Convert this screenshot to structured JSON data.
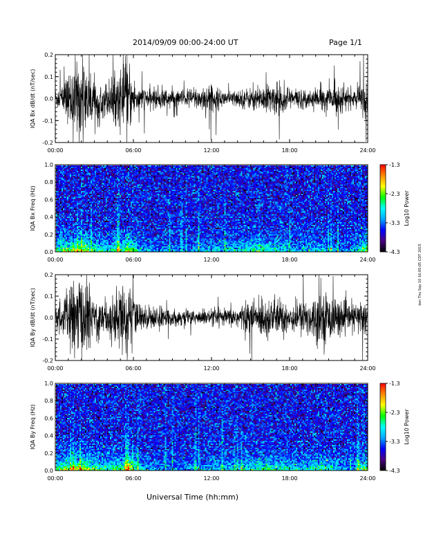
{
  "header": {
    "title": "2014/09/09   00:00-24:00 UT",
    "page": "Page 1/1"
  },
  "footer": {
    "xlabel": "Universal Time (hh:mm)"
  },
  "side_note": "ken Thu Sep 10 16:05:05 CDT 2015",
  "chart_data": [
    {
      "type": "line",
      "ylabel": "IQA Bx dB/dt (nT/sec)",
      "ylim": [
        -0.2,
        0.2
      ],
      "yticks": [
        -0.2,
        -0.1,
        0.0,
        0.1,
        0.2
      ],
      "ytick_labels": [
        "-0.2",
        "-0.1",
        "0.0",
        "0.1",
        "0.2"
      ],
      "xlim": [
        0,
        24
      ],
      "xtick_labels": [
        "00:00",
        "06:00",
        "12:00",
        "18:00",
        "24:00"
      ],
      "x": [
        0,
        0.5,
        1,
        1.5,
        2,
        2.5,
        3,
        3.5,
        4,
        4.5,
        5,
        5.5,
        6,
        6.5,
        7,
        7.5,
        8,
        8.5,
        9,
        9.5,
        10,
        10.5,
        11,
        11.5,
        12,
        12.5,
        13,
        13.5,
        14,
        14.5,
        15,
        15.5,
        16,
        16.5,
        17,
        17.5,
        18,
        18.5,
        19,
        19.5,
        20,
        20.5,
        21,
        21.5,
        22,
        22.5,
        23,
        23.5,
        24
      ],
      "amplitude": [
        0.05,
        0.07,
        0.12,
        0.19,
        0.2,
        0.16,
        0.1,
        0.08,
        0.09,
        0.12,
        0.14,
        0.2,
        0.1,
        0.06,
        0.05,
        0.05,
        0.06,
        0.05,
        0.05,
        0.04,
        0.05,
        0.05,
        0.06,
        0.07,
        0.07,
        0.05,
        0.04,
        0.04,
        0.04,
        0.05,
        0.05,
        0.06,
        0.07,
        0.07,
        0.08,
        0.07,
        0.06,
        0.05,
        0.05,
        0.04,
        0.05,
        0.05,
        0.06,
        0.08,
        0.06,
        0.05,
        0.04,
        0.08,
        0.1
      ],
      "color": "#000000"
    },
    {
      "type": "heatmap",
      "ylabel": "IQA Bx Freq (Hz)",
      "ylim": [
        0.0,
        1.0
      ],
      "yticks": [
        0.0,
        0.2,
        0.4,
        0.6,
        0.8,
        1.0
      ],
      "ytick_labels": [
        "0.0",
        "0.2",
        "0.4",
        "0.6",
        "0.8",
        "1.0"
      ],
      "xlim": [
        0,
        24
      ],
      "xtick_labels": [
        "00:00",
        "06:00",
        "12:00",
        "18:00",
        "24:00"
      ],
      "colorbar": {
        "label": "Log10 Power",
        "range": [
          -4.3,
          -1.3
        ],
        "tick_labels": [
          "-1.3",
          "-2.3",
          "-3.3",
          "-4.3"
        ],
        "colors": [
          "#000000",
          "#4b0082",
          "#0000ff",
          "#00aaff",
          "#00ffff",
          "#00ff00",
          "#ffff00",
          "#ff8c00",
          "#ff0000"
        ]
      },
      "low_frequency_enhancement_log10": [
        -2.6,
        -2.4,
        -2.2,
        -2.1,
        -2.0,
        -2.3,
        -2.6,
        -2.7,
        -2.8,
        -2.5,
        -2.6,
        -1.9,
        -2.6,
        -3.0,
        -3.1,
        -3.2,
        -3.2,
        -3.3,
        -3.3,
        -3.3,
        -3.3,
        -3.2,
        -3.1,
        -3.0,
        -3.0,
        -2.9,
        -2.8,
        -2.8,
        -2.9,
        -2.8,
        -2.7,
        -2.6,
        -2.6,
        -2.7,
        -2.8,
        -2.9,
        -2.9,
        -3.0,
        -3.0,
        -3.0,
        -2.9,
        -2.9,
        -3.0,
        -3.1,
        -3.2,
        -3.2,
        -3.1,
        -2.6,
        -2.2
      ],
      "background_log10": -3.6
    },
    {
      "type": "line",
      "ylabel": "IQA By dB/dt (nT/sec)",
      "ylim": [
        -0.2,
        0.2
      ],
      "yticks": [
        -0.2,
        -0.1,
        0.0,
        0.1,
        0.2
      ],
      "ytick_labels": [
        "-0.2",
        "-0.1",
        "0.0",
        "0.1",
        "0.2"
      ],
      "xlim": [
        0,
        24
      ],
      "xtick_labels": [
        "00:00",
        "06:00",
        "12:00",
        "18:00",
        "24:00"
      ],
      "x": [
        0,
        0.5,
        1,
        1.5,
        2,
        2.5,
        3,
        3.5,
        4,
        4.5,
        5,
        5.5,
        6,
        6.5,
        7,
        7.5,
        8,
        8.5,
        9,
        9.5,
        10,
        10.5,
        11,
        11.5,
        12,
        12.5,
        13,
        13.5,
        14,
        14.5,
        15,
        15.5,
        16,
        16.5,
        17,
        17.5,
        18,
        18.5,
        19,
        19.5,
        20,
        20.5,
        21,
        21.5,
        22,
        22.5,
        23,
        23.5,
        24
      ],
      "amplitude": [
        0.06,
        0.09,
        0.15,
        0.2,
        0.2,
        0.18,
        0.12,
        0.1,
        0.1,
        0.13,
        0.15,
        0.2,
        0.12,
        0.07,
        0.06,
        0.06,
        0.05,
        0.05,
        0.04,
        0.04,
        0.04,
        0.04,
        0.04,
        0.04,
        0.04,
        0.04,
        0.04,
        0.05,
        0.06,
        0.07,
        0.08,
        0.09,
        0.11,
        0.1,
        0.09,
        0.09,
        0.08,
        0.08,
        0.09,
        0.1,
        0.12,
        0.13,
        0.12,
        0.1,
        0.08,
        0.07,
        0.07,
        0.09,
        0.1
      ],
      "color": "#000000"
    },
    {
      "type": "heatmap",
      "ylabel": "IQA By Freq (Hz)",
      "ylim": [
        0.0,
        1.0
      ],
      "yticks": [
        0.0,
        0.2,
        0.4,
        0.6,
        0.8,
        1.0
      ],
      "ytick_labels": [
        "0.0",
        "0.2",
        "0.4",
        "0.6",
        "0.8",
        "1.0"
      ],
      "xlim": [
        0,
        24
      ],
      "xtick_labels": [
        "00:00",
        "06:00",
        "12:00",
        "18:00",
        "24:00"
      ],
      "colorbar": {
        "label": "Log10 Power",
        "range": [
          -4.3,
          -1.3
        ],
        "tick_labels": [
          "-1.3",
          "-2.3",
          "-3.3",
          "-4.3"
        ],
        "colors": [
          "#000000",
          "#4b0082",
          "#0000ff",
          "#00aaff",
          "#00ffff",
          "#00ff00",
          "#ffff00",
          "#ff8c00",
          "#ff0000"
        ]
      },
      "low_frequency_enhancement_log10": [
        -2.5,
        -2.3,
        -2.1,
        -2.0,
        -1.9,
        -2.2,
        -2.5,
        -2.6,
        -2.7,
        -2.4,
        -2.5,
        -1.8,
        -2.5,
        -2.9,
        -3.0,
        -3.1,
        -3.1,
        -3.2,
        -3.2,
        -3.3,
        -3.3,
        -3.2,
        -3.1,
        -3.0,
        -3.0,
        -3.0,
        -2.9,
        -2.9,
        -2.9,
        -2.8,
        -2.7,
        -2.6,
        -2.6,
        -2.6,
        -2.7,
        -2.7,
        -2.8,
        -2.9,
        -2.9,
        -2.8,
        -2.7,
        -2.7,
        -2.8,
        -2.9,
        -3.0,
        -3.1,
        -3.0,
        -2.6,
        -2.2
      ],
      "background_log10": -3.6
    }
  ]
}
